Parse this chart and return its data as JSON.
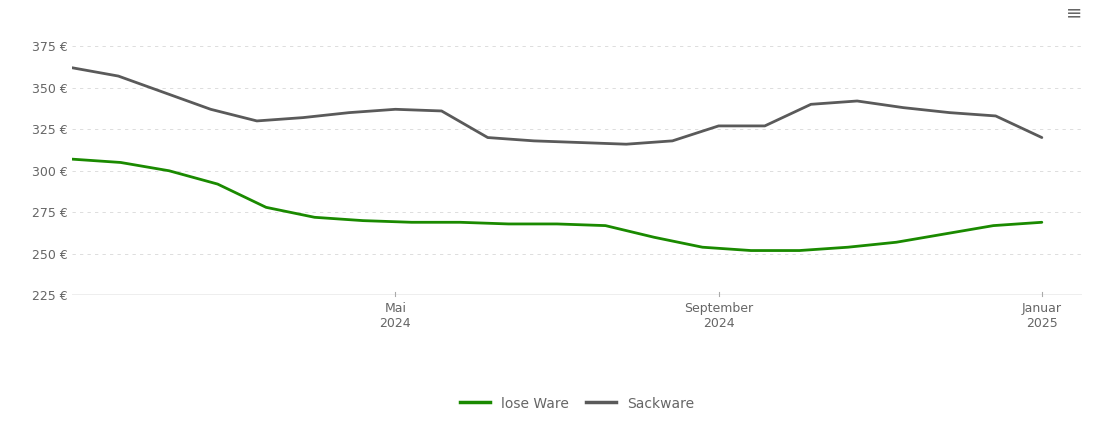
{
  "lose_ware": [
    307,
    305,
    300,
    292,
    278,
    272,
    270,
    269,
    269,
    268,
    268,
    267,
    260,
    254,
    252,
    252,
    254,
    257,
    262,
    267,
    269
  ],
  "sackware": [
    362,
    357,
    347,
    337,
    330,
    332,
    335,
    337,
    336,
    320,
    318,
    317,
    316,
    318,
    327,
    327,
    340,
    342,
    338,
    335,
    333,
    320
  ],
  "lose_color": "#1a8a00",
  "sack_color": "#5a5a5a",
  "background": "#ffffff",
  "grid_color": "#d8d8d8",
  "axis_color": "#aaaaaa",
  "text_color": "#666666",
  "ylim": [
    225,
    385
  ],
  "yticks": [
    225,
    250,
    275,
    300,
    325,
    350,
    375
  ],
  "ylabel_format": "{} €",
  "xtick_positions": [
    4,
    8,
    12
  ],
  "xtick_labels": [
    "Mai\n2024",
    "September\n2024",
    "Januar\n2025"
  ],
  "legend_lose": "lose Ware",
  "legend_sack": "Sackware",
  "line_width": 2.0,
  "n_points_lose": 21,
  "n_points_sack": 22,
  "xlim": [
    0,
    12.5
  ]
}
